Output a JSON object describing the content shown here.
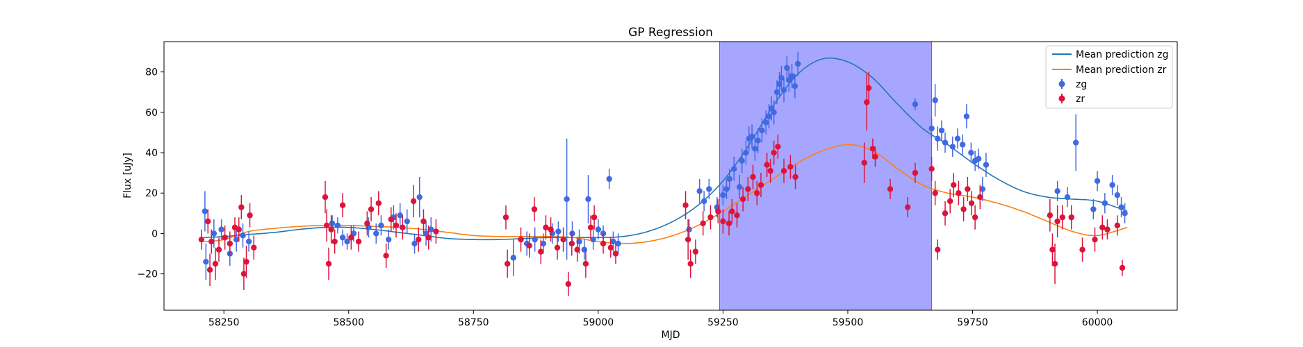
{
  "chart_data": {
    "type": "scatter",
    "title": "GP Regression",
    "xlabel": "MJD",
    "ylabel": "Flux [uJy]",
    "xlim": [
      58130,
      60160
    ],
    "ylim": [
      -38,
      95
    ],
    "xticks": [
      58250,
      58500,
      58750,
      59000,
      59250,
      59500,
      59750,
      60000
    ],
    "yticks": [
      -20,
      0,
      20,
      40,
      60,
      80
    ],
    "grid": false,
    "legend_position": "top-right",
    "shaded_region": {
      "x_start": 59243,
      "x_end": 59668,
      "color": "#a6a6ff"
    },
    "lines": [
      {
        "name": "Mean prediction zg",
        "color": "#1f77b4",
        "x": [
          58210,
          58250,
          58300,
          58350,
          58400,
          58450,
          58500,
          58550,
          58600,
          58650,
          58700,
          58750,
          58800,
          58850,
          58900,
          58950,
          59000,
          59050,
          59100,
          59150,
          59200,
          59250,
          59300,
          59350,
          59400,
          59450,
          59500,
          59550,
          59600,
          59650,
          59700,
          59750,
          59800,
          59850,
          59900,
          59950,
          60000,
          60060
        ],
        "y": [
          -2,
          -1.5,
          -0.5,
          0.5,
          2,
          3,
          3,
          2,
          0.5,
          -1,
          -2.5,
          -3,
          -3,
          -2.5,
          -2,
          -2,
          -2,
          -1.5,
          1,
          6,
          14,
          26,
          43,
          63,
          79,
          86.5,
          85,
          77,
          64,
          52,
          44,
          35,
          27,
          21,
          18,
          17,
          16,
          11
        ]
      },
      {
        "name": "Mean prediction zr",
        "color": "#ff7f0e",
        "x": [
          58210,
          58250,
          58300,
          58350,
          58400,
          58450,
          58500,
          58550,
          58600,
          58650,
          58700,
          58750,
          58800,
          58850,
          58900,
          58950,
          59000,
          59050,
          59100,
          59150,
          59200,
          59250,
          59300,
          59350,
          59400,
          59450,
          59500,
          59550,
          59600,
          59650,
          59700,
          59750,
          59800,
          59850,
          59900,
          59950,
          60000,
          60060
        ],
        "y": [
          -4,
          -3,
          1,
          2.5,
          3.5,
          4,
          4,
          3.5,
          3,
          2,
          0.5,
          -1,
          -1.5,
          -1.5,
          -1.5,
          -2,
          -4,
          -5,
          -4,
          -1,
          4,
          11,
          19,
          27,
          35,
          41,
          44,
          41,
          32,
          24,
          20,
          18,
          15,
          11,
          6,
          1,
          -1,
          3
        ]
      }
    ],
    "series": [
      {
        "name": "zg",
        "color": "#4169e1",
        "points": [
          [
            58212,
            11,
            10
          ],
          [
            58214,
            -14,
            9
          ],
          [
            58230,
            0,
            7
          ],
          [
            58245,
            2,
            5
          ],
          [
            58262,
            -10,
            6
          ],
          [
            58275,
            -3,
            6
          ],
          [
            58288,
            -1,
            6
          ],
          [
            58300,
            -4,
            5
          ],
          [
            58467,
            5,
            4
          ],
          [
            58478,
            4,
            4
          ],
          [
            58488,
            -2,
            4
          ],
          [
            58497,
            -4,
            4
          ],
          [
            58510,
            0,
            4
          ],
          [
            58540,
            3,
            5
          ],
          [
            58555,
            0,
            5
          ],
          [
            58565,
            4,
            5
          ],
          [
            58580,
            -3,
            5
          ],
          [
            58590,
            8,
            6
          ],
          [
            58603,
            9,
            6
          ],
          [
            58617,
            6,
            6
          ],
          [
            58632,
            -5,
            5
          ],
          [
            58642,
            18,
            10
          ],
          [
            58655,
            0,
            6
          ],
          [
            58665,
            2,
            6
          ],
          [
            58830,
            -12,
            9
          ],
          [
            58857,
            -5,
            6
          ],
          [
            58873,
            -3,
            6
          ],
          [
            58890,
            -5,
            5
          ],
          [
            58908,
            0,
            5
          ],
          [
            58920,
            1,
            5
          ],
          [
            58937,
            17,
            30
          ],
          [
            58948,
            0,
            6
          ],
          [
            58962,
            -4,
            6
          ],
          [
            58972,
            -8,
            5
          ],
          [
            58980,
            17,
            12
          ],
          [
            58990,
            -3,
            5
          ],
          [
            59000,
            2,
            5
          ],
          [
            59010,
            0,
            4
          ],
          [
            59022,
            27,
            5
          ],
          [
            59030,
            -4,
            5
          ],
          [
            59040,
            -5,
            5
          ],
          [
            59182,
            2,
            5
          ],
          [
            59203,
            21,
            6
          ],
          [
            59212,
            16,
            5
          ],
          [
            59222,
            22,
            5
          ],
          [
            59238,
            13,
            5
          ],
          [
            59250,
            19,
            5
          ],
          [
            59257,
            22,
            5
          ],
          [
            59263,
            27,
            5
          ],
          [
            59272,
            32,
            6
          ],
          [
            59283,
            23,
            6
          ],
          [
            59288,
            36,
            6
          ],
          [
            59296,
            40,
            6
          ],
          [
            59302,
            47,
            6
          ],
          [
            59308,
            48,
            6
          ],
          [
            59314,
            42,
            6
          ],
          [
            59320,
            46,
            6
          ],
          [
            59328,
            51,
            6
          ],
          [
            59336,
            55,
            6
          ],
          [
            59342,
            58,
            6
          ],
          [
            59347,
            62,
            6
          ],
          [
            59352,
            60,
            6
          ],
          [
            59358,
            70,
            6
          ],
          [
            59363,
            74,
            6
          ],
          [
            59367,
            77,
            6
          ],
          [
            59372,
            71,
            6
          ],
          [
            59378,
            82,
            6
          ],
          [
            59382,
            76,
            6
          ],
          [
            59388,
            78,
            6
          ],
          [
            59394,
            73,
            6
          ],
          [
            59400,
            84,
            6
          ],
          [
            59635,
            64,
            3
          ],
          [
            59668,
            52,
            5
          ],
          [
            59675,
            66,
            8
          ],
          [
            59680,
            47,
            6
          ],
          [
            59688,
            51,
            5
          ],
          [
            59695,
            45,
            5
          ],
          [
            59710,
            43,
            5
          ],
          [
            59720,
            47,
            5
          ],
          [
            59730,
            44,
            5
          ],
          [
            59738,
            58,
            6
          ],
          [
            59747,
            40,
            5
          ],
          [
            59755,
            36,
            5
          ],
          [
            59762,
            37,
            5
          ],
          [
            59770,
            22,
            6
          ],
          [
            59777,
            34,
            6
          ],
          [
            59920,
            21,
            5
          ],
          [
            59940,
            18,
            5
          ],
          [
            59957,
            45,
            14
          ],
          [
            59992,
            12,
            5
          ],
          [
            60000,
            26,
            5
          ],
          [
            60015,
            15,
            5
          ],
          [
            60030,
            24,
            5
          ],
          [
            60040,
            19,
            5
          ],
          [
            60048,
            13,
            5
          ],
          [
            60055,
            10,
            5
          ]
        ]
      },
      {
        "name": "zr",
        "color": "#dc143c",
        "points": [
          [
            58205,
            -3,
            5
          ],
          [
            58218,
            6,
            6
          ],
          [
            58222,
            -18,
            8
          ],
          [
            58225,
            -4,
            6
          ],
          [
            58233,
            -15,
            8
          ],
          [
            58240,
            -8,
            6
          ],
          [
            58252,
            -2,
            6
          ],
          [
            58262,
            -5,
            6
          ],
          [
            58272,
            3,
            5
          ],
          [
            58280,
            2,
            6
          ],
          [
            58285,
            13,
            6
          ],
          [
            58290,
            -20,
            8
          ],
          [
            58295,
            -14,
            8
          ],
          [
            58302,
            9,
            6
          ],
          [
            58310,
            -7,
            6
          ],
          [
            58453,
            18,
            8
          ],
          [
            58456,
            4,
            8
          ],
          [
            58460,
            -15,
            8
          ],
          [
            58465,
            2,
            7
          ],
          [
            58472,
            -4,
            6
          ],
          [
            58488,
            14,
            6
          ],
          [
            58505,
            -2,
            6
          ],
          [
            58520,
            -4,
            5
          ],
          [
            58537,
            5,
            6
          ],
          [
            58545,
            12,
            6
          ],
          [
            58560,
            15,
            6
          ],
          [
            58575,
            -11,
            6
          ],
          [
            58585,
            7,
            6
          ],
          [
            58595,
            4,
            6
          ],
          [
            58608,
            3,
            6
          ],
          [
            58630,
            16,
            8
          ],
          [
            58640,
            -3,
            6
          ],
          [
            58650,
            6,
            6
          ],
          [
            58660,
            -2,
            6
          ],
          [
            58675,
            1,
            6
          ],
          [
            58815,
            8,
            6
          ],
          [
            58818,
            -15,
            7
          ],
          [
            58845,
            -3,
            6
          ],
          [
            58862,
            -6,
            6
          ],
          [
            58872,
            12,
            6
          ],
          [
            58885,
            -9,
            6
          ],
          [
            58895,
            3,
            6
          ],
          [
            58905,
            2,
            6
          ],
          [
            58918,
            -7,
            6
          ],
          [
            58930,
            -3,
            6
          ],
          [
            58940,
            -25,
            6
          ],
          [
            58947,
            -5,
            6
          ],
          [
            58958,
            -8,
            6
          ],
          [
            58975,
            -15,
            7
          ],
          [
            58985,
            3,
            6
          ],
          [
            58992,
            8,
            6
          ],
          [
            59010,
            -5,
            5
          ],
          [
            59025,
            -7,
            5
          ],
          [
            59035,
            -10,
            5
          ],
          [
            59175,
            14,
            7
          ],
          [
            59180,
            -3,
            10
          ],
          [
            59185,
            -15,
            7
          ],
          [
            59195,
            -9,
            6
          ],
          [
            59210,
            5,
            6
          ],
          [
            59225,
            8,
            6
          ],
          [
            59240,
            11,
            6
          ],
          [
            59250,
            6,
            6
          ],
          [
            59262,
            5,
            6
          ],
          [
            59268,
            11,
            6
          ],
          [
            59278,
            9,
            6
          ],
          [
            59290,
            17,
            6
          ],
          [
            59300,
            22,
            6
          ],
          [
            59310,
            28,
            6
          ],
          [
            59318,
            20,
            6
          ],
          [
            59326,
            24,
            6
          ],
          [
            59338,
            34,
            6
          ],
          [
            59345,
            31,
            6
          ],
          [
            59352,
            40,
            6
          ],
          [
            59360,
            43,
            6
          ],
          [
            59372,
            31,
            6
          ],
          [
            59385,
            33,
            6
          ],
          [
            59395,
            28,
            6
          ],
          [
            59533,
            35,
            10
          ],
          [
            59538,
            65,
            14
          ],
          [
            59542,
            72,
            8
          ],
          [
            59550,
            42,
            5
          ],
          [
            59555,
            38,
            5
          ],
          [
            59585,
            22,
            5
          ],
          [
            59620,
            13,
            5
          ],
          [
            59635,
            30,
            5
          ],
          [
            59668,
            32,
            6
          ],
          [
            59675,
            20,
            6
          ],
          [
            59680,
            -8,
            5
          ],
          [
            59695,
            10,
            6
          ],
          [
            59705,
            16,
            6
          ],
          [
            59712,
            24,
            6
          ],
          [
            59722,
            20,
            6
          ],
          [
            59732,
            12,
            6
          ],
          [
            59740,
            22,
            6
          ],
          [
            59748,
            15,
            6
          ],
          [
            59755,
            8,
            6
          ],
          [
            59765,
            18,
            6
          ],
          [
            59905,
            9,
            8
          ],
          [
            59910,
            -8,
            8
          ],
          [
            59915,
            -15,
            10
          ],
          [
            59920,
            6,
            8
          ],
          [
            59930,
            8,
            6
          ],
          [
            59948,
            8,
            6
          ],
          [
            59970,
            -8,
            6
          ],
          [
            59995,
            -3,
            6
          ],
          [
            60010,
            3,
            6
          ],
          [
            60020,
            2,
            5
          ],
          [
            60040,
            4,
            5
          ],
          [
            60050,
            -17,
            4
          ]
        ]
      }
    ]
  }
}
